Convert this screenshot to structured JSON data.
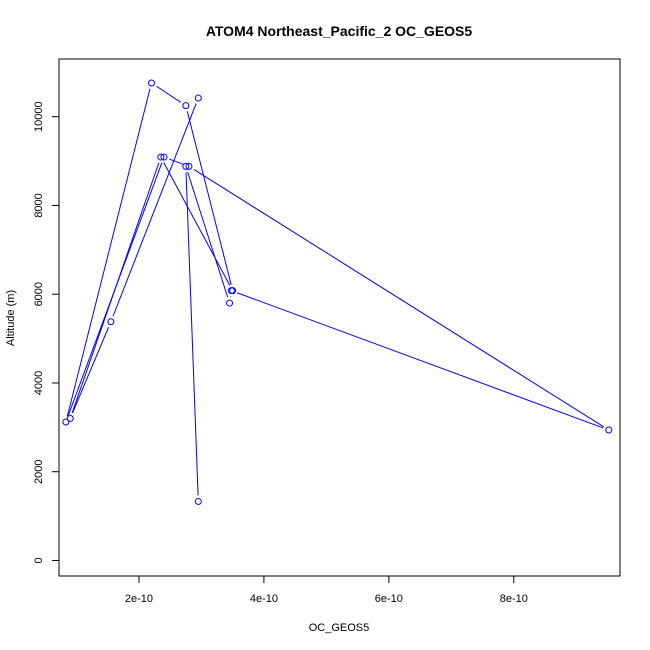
{
  "chart_data": {
    "type": "line",
    "title": "ATOM4 Northeast_Pacific_2 OC_GEOS5",
    "xlabel": "OC_GEOS5",
    "ylabel": "Altitude (m)",
    "xlim": [
      7.2e-11,
      9.7e-10
    ],
    "ylim": [
      -350,
      11300
    ],
    "x_ticks": [
      2e-10,
      4e-10,
      6e-10,
      8e-10
    ],
    "x_tick_labels": [
      "2e-10",
      "4e-10",
      "6e-10",
      "8e-10"
    ],
    "y_ticks": [
      0,
      2000,
      4000,
      6000,
      8000,
      10000
    ],
    "y_tick_labels": [
      "0",
      "2000",
      "4000",
      "6000",
      "8000",
      "10000"
    ],
    "grid": false,
    "series": [
      {
        "color": "#0000ff",
        "marker": "open-circle",
        "x": [
          2.95e-10,
          2.75e-10,
          3.45e-10,
          3.48e-10,
          9.52e-10,
          2.8e-10,
          2.4e-10,
          8.3e-11,
          2.2e-10,
          2.75e-10,
          3.5e-10,
          2.35e-10,
          9e-11,
          1.55e-10,
          2.95e-10
        ],
        "y": [
          1330,
          8880,
          5800,
          6080,
          2940,
          8880,
          9090,
          3120,
          10760,
          10250,
          6080,
          9090,
          3200,
          5380,
          10420
        ]
      }
    ]
  }
}
